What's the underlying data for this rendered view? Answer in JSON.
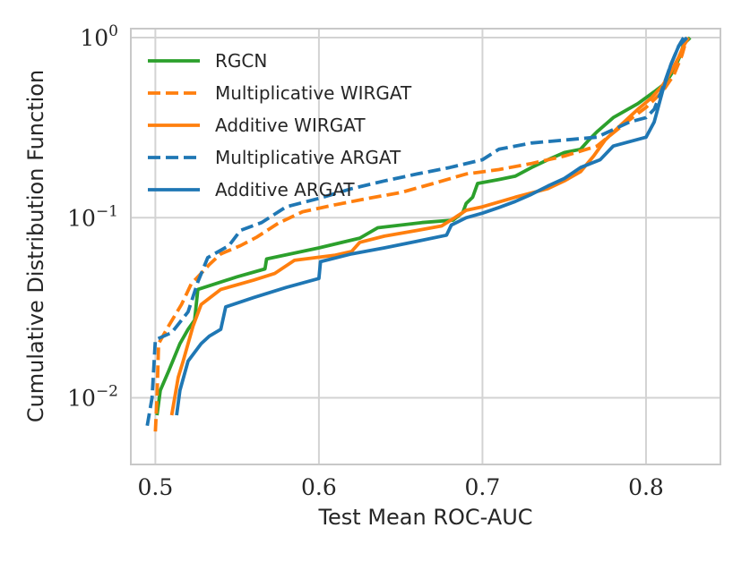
{
  "chart_data": {
    "type": "line",
    "xlabel": "Test Mean ROC-AUC",
    "ylabel": "Cumulative Distribution Function",
    "xlim": [
      0.485,
      0.8455
    ],
    "ylim_log10": [
      -2.37,
      0.05
    ],
    "yscale": "log",
    "grid": true,
    "legend_position": "top-left",
    "xticks": [
      {
        "value": 0.5,
        "label": "0.5"
      },
      {
        "value": 0.6,
        "label": "0.6"
      },
      {
        "value": 0.7,
        "label": "0.7"
      },
      {
        "value": 0.8,
        "label": "0.8"
      }
    ],
    "yticks": [
      {
        "value": 0.01,
        "base": "10",
        "exp": "−2"
      },
      {
        "value": 0.1,
        "base": "10",
        "exp": "−1"
      },
      {
        "value": 1,
        "base": "10",
        "exp": "0"
      }
    ],
    "series": [
      {
        "name": "RGCN",
        "color": "#2ca02c",
        "dash": "solid",
        "points": [
          [
            0.501,
            0.008
          ],
          [
            0.503,
            0.011
          ],
          [
            0.508,
            0.014
          ],
          [
            0.515,
            0.02
          ],
          [
            0.52,
            0.024
          ],
          [
            0.524,
            0.027
          ],
          [
            0.526,
            0.04
          ],
          [
            0.55,
            0.047
          ],
          [
            0.567,
            0.052
          ],
          [
            0.568,
            0.059
          ],
          [
            0.6,
            0.068
          ],
          [
            0.625,
            0.077
          ],
          [
            0.636,
            0.088
          ],
          [
            0.663,
            0.094
          ],
          [
            0.682,
            0.097
          ],
          [
            0.688,
            0.107
          ],
          [
            0.69,
            0.12
          ],
          [
            0.694,
            0.13
          ],
          [
            0.697,
            0.155
          ],
          [
            0.71,
            0.163
          ],
          [
            0.72,
            0.17
          ],
          [
            0.73,
            0.19
          ],
          [
            0.74,
            0.21
          ],
          [
            0.75,
            0.23
          ],
          [
            0.76,
            0.24
          ],
          [
            0.765,
            0.27
          ],
          [
            0.77,
            0.3
          ],
          [
            0.78,
            0.36
          ],
          [
            0.795,
            0.43
          ],
          [
            0.805,
            0.5
          ],
          [
            0.812,
            0.56
          ],
          [
            0.817,
            0.66
          ],
          [
            0.821,
            0.8
          ],
          [
            0.823,
            0.92
          ],
          [
            0.827,
            1.0
          ]
        ]
      },
      {
        "name": "Multiplicative WIRGAT",
        "color": "#ff7f0e",
        "dash": "dashed",
        "points": [
          [
            0.5,
            0.0065
          ],
          [
            0.501,
            0.01
          ],
          [
            0.502,
            0.02
          ],
          [
            0.508,
            0.025
          ],
          [
            0.516,
            0.033
          ],
          [
            0.522,
            0.043
          ],
          [
            0.527,
            0.048
          ],
          [
            0.533,
            0.055
          ],
          [
            0.54,
            0.063
          ],
          [
            0.552,
            0.07
          ],
          [
            0.562,
            0.078
          ],
          [
            0.575,
            0.093
          ],
          [
            0.59,
            0.108
          ],
          [
            0.61,
            0.118
          ],
          [
            0.63,
            0.128
          ],
          [
            0.65,
            0.138
          ],
          [
            0.67,
            0.155
          ],
          [
            0.69,
            0.175
          ],
          [
            0.71,
            0.185
          ],
          [
            0.73,
            0.2
          ],
          [
            0.75,
            0.22
          ],
          [
            0.77,
            0.25
          ],
          [
            0.79,
            0.35
          ],
          [
            0.8,
            0.41
          ],
          [
            0.81,
            0.5
          ],
          [
            0.817,
            0.62
          ],
          [
            0.822,
            0.8
          ],
          [
            0.825,
            1.0
          ]
        ]
      },
      {
        "name": "Additive WIRGAT",
        "color": "#ff7f0e",
        "dash": "solid",
        "points": [
          [
            0.51,
            0.008
          ],
          [
            0.514,
            0.013
          ],
          [
            0.517,
            0.016
          ],
          [
            0.523,
            0.025
          ],
          [
            0.528,
            0.033
          ],
          [
            0.54,
            0.04
          ],
          [
            0.56,
            0.045
          ],
          [
            0.573,
            0.049
          ],
          [
            0.585,
            0.058
          ],
          [
            0.61,
            0.062
          ],
          [
            0.62,
            0.065
          ],
          [
            0.625,
            0.073
          ],
          [
            0.64,
            0.079
          ],
          [
            0.66,
            0.085
          ],
          [
            0.675,
            0.09
          ],
          [
            0.683,
            0.1
          ],
          [
            0.69,
            0.11
          ],
          [
            0.7,
            0.115
          ],
          [
            0.72,
            0.13
          ],
          [
            0.74,
            0.145
          ],
          [
            0.75,
            0.16
          ],
          [
            0.76,
            0.18
          ],
          [
            0.768,
            0.22
          ],
          [
            0.775,
            0.27
          ],
          [
            0.785,
            0.33
          ],
          [
            0.795,
            0.4
          ],
          [
            0.803,
            0.46
          ],
          [
            0.81,
            0.54
          ],
          [
            0.815,
            0.64
          ],
          [
            0.82,
            0.78
          ],
          [
            0.823,
            0.9
          ],
          [
            0.826,
            1.0
          ]
        ]
      },
      {
        "name": "Multiplicative ARGAT",
        "color": "#1f77b4",
        "dash": "dashed",
        "points": [
          [
            0.495,
            0.007
          ],
          [
            0.498,
            0.01
          ],
          [
            0.5,
            0.021
          ],
          [
            0.51,
            0.023
          ],
          [
            0.52,
            0.03
          ],
          [
            0.526,
            0.044
          ],
          [
            0.532,
            0.06
          ],
          [
            0.545,
            0.07
          ],
          [
            0.552,
            0.085
          ],
          [
            0.565,
            0.094
          ],
          [
            0.58,
            0.115
          ],
          [
            0.6,
            0.128
          ],
          [
            0.62,
            0.145
          ],
          [
            0.64,
            0.16
          ],
          [
            0.66,
            0.175
          ],
          [
            0.68,
            0.19
          ],
          [
            0.7,
            0.21
          ],
          [
            0.71,
            0.24
          ],
          [
            0.73,
            0.26
          ],
          [
            0.75,
            0.27
          ],
          [
            0.77,
            0.28
          ],
          [
            0.79,
            0.34
          ],
          [
            0.8,
            0.36
          ],
          [
            0.805,
            0.4
          ],
          [
            0.81,
            0.52
          ],
          [
            0.815,
            0.7
          ],
          [
            0.82,
            0.9
          ],
          [
            0.823,
            1.0
          ]
        ]
      },
      {
        "name": "Additive ARGAT",
        "color": "#1f77b4",
        "dash": "solid",
        "points": [
          [
            0.513,
            0.008
          ],
          [
            0.515,
            0.011
          ],
          [
            0.52,
            0.016
          ],
          [
            0.528,
            0.02
          ],
          [
            0.533,
            0.022
          ],
          [
            0.54,
            0.024
          ],
          [
            0.543,
            0.032
          ],
          [
            0.56,
            0.036
          ],
          [
            0.58,
            0.041
          ],
          [
            0.6,
            0.046
          ],
          [
            0.601,
            0.057
          ],
          [
            0.62,
            0.063
          ],
          [
            0.64,
            0.068
          ],
          [
            0.66,
            0.074
          ],
          [
            0.678,
            0.08
          ],
          [
            0.681,
            0.091
          ],
          [
            0.69,
            0.1
          ],
          [
            0.7,
            0.106
          ],
          [
            0.71,
            0.114
          ],
          [
            0.72,
            0.123
          ],
          [
            0.73,
            0.135
          ],
          [
            0.74,
            0.15
          ],
          [
            0.75,
            0.165
          ],
          [
            0.76,
            0.19
          ],
          [
            0.772,
            0.21
          ],
          [
            0.78,
            0.25
          ],
          [
            0.8,
            0.28
          ],
          [
            0.805,
            0.34
          ],
          [
            0.81,
            0.5
          ],
          [
            0.815,
            0.7
          ],
          [
            0.82,
            0.9
          ],
          [
            0.825,
            1.0
          ]
        ]
      }
    ]
  }
}
